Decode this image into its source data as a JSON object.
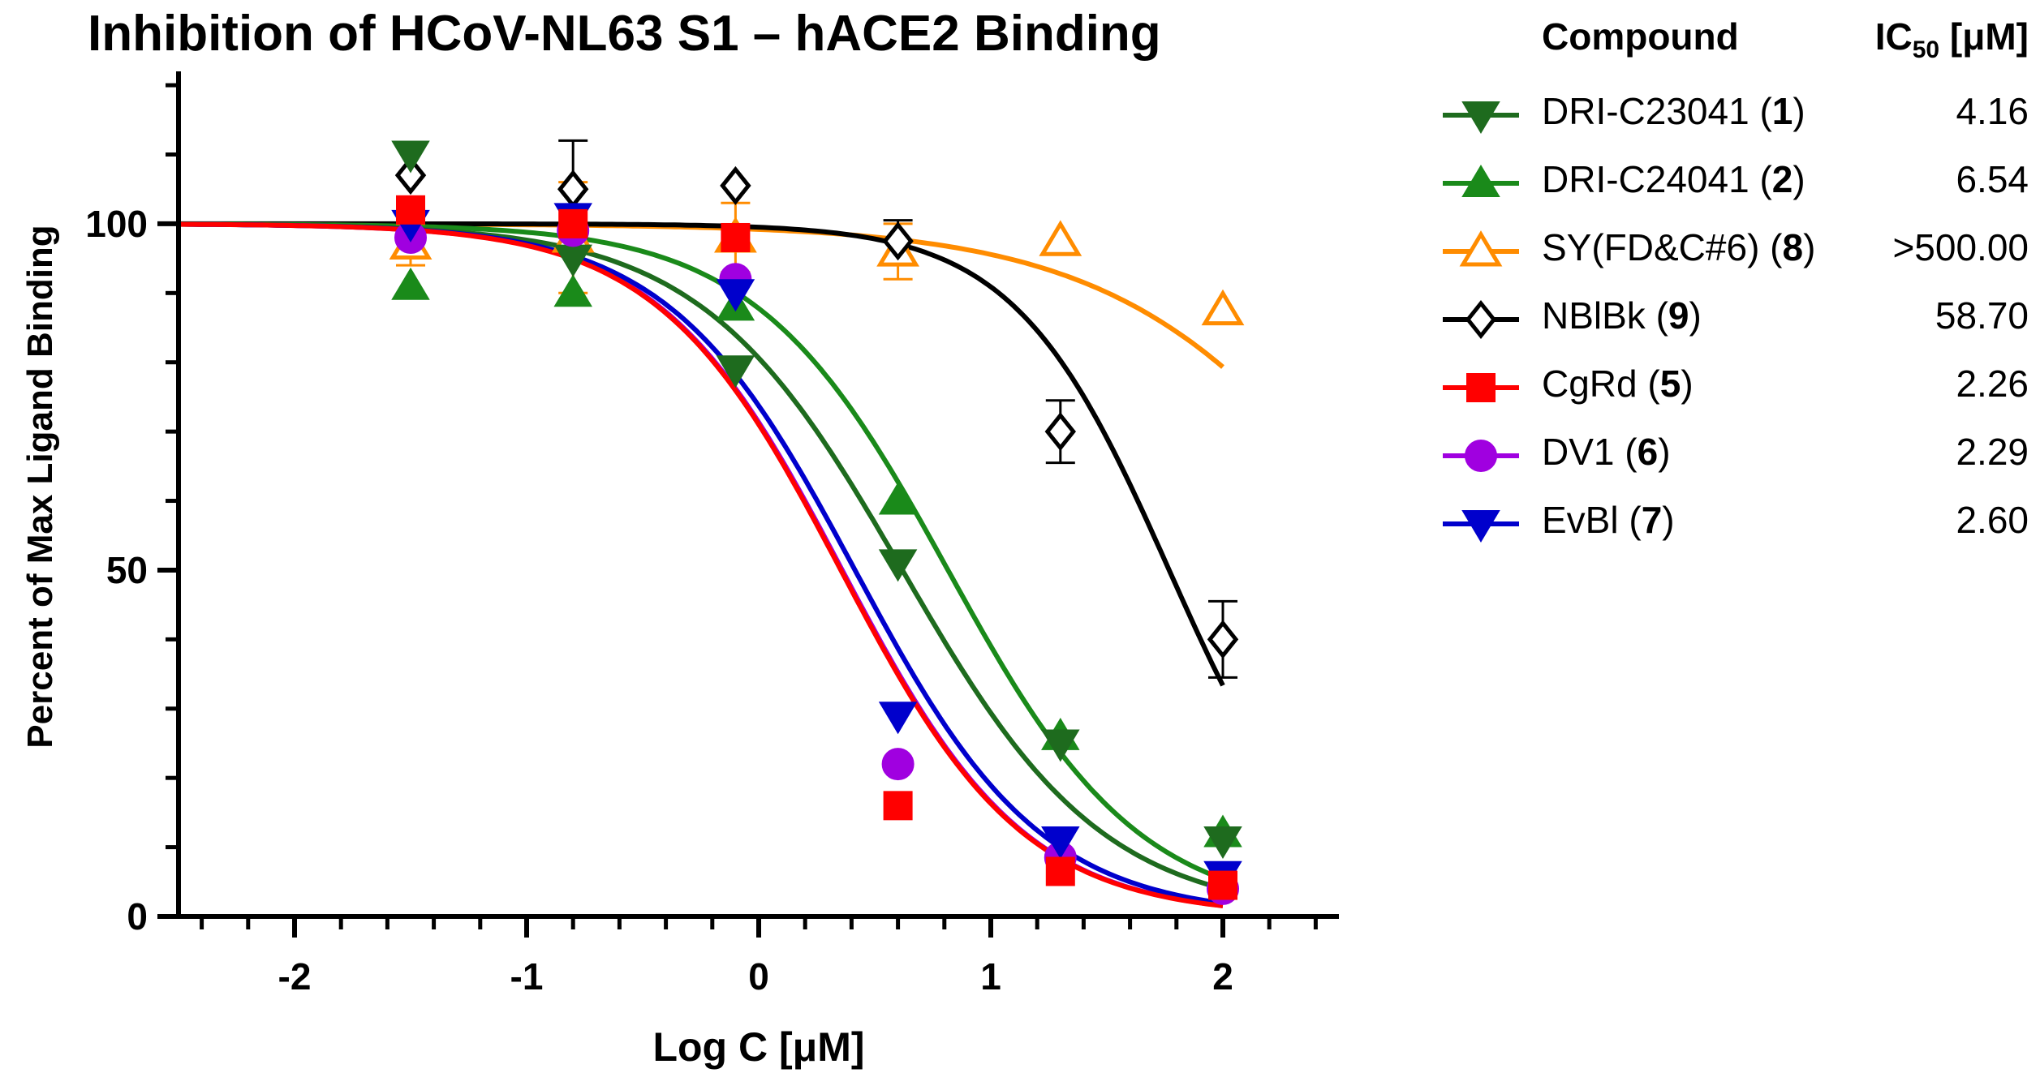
{
  "chart_data": {
    "type": "scatter",
    "title": "Inhibition of HCoV-NL63 S1 – hACE2 Binding",
    "xlabel": "Log C [μM]",
    "ylabel": "Percent of Max Ligand Binding",
    "xlim": [
      -2.5,
      2.5
    ],
    "ylim": [
      0,
      122
    ],
    "xticks": [
      -2,
      -1,
      0,
      1,
      2
    ],
    "yticks": [
      0,
      50,
      100
    ],
    "x_tick_labels": [
      "-2",
      "-1",
      "0",
      "1",
      "2"
    ],
    "y_tick_labels": [
      "0",
      "50",
      "100"
    ],
    "fit": "four-parameter logistic (top 100, bottom 0)",
    "legend_position": "right",
    "legend_header": {
      "compound": "Compound",
      "ic50": "IC",
      "ic50_sub": "50",
      "ic50_unit": " [μM]"
    },
    "series": [
      {
        "name": "DRI-C23041",
        "num": "1",
        "ic50_label": "4.16",
        "ic50": 4.16,
        "hill": 1.0,
        "marker": "triangle-down",
        "filled": true,
        "color": "#1e6b1e",
        "x": [
          -1.5,
          -0.8,
          -0.1,
          0.6,
          1.3,
          2.0
        ],
        "y": [
          110,
          95,
          79,
          51,
          25,
          11
        ]
      },
      {
        "name": "DRI-C24041",
        "num": "2",
        "ic50_label": "6.54",
        "ic50": 6.54,
        "hill": 1.05,
        "marker": "triangle-up",
        "filled": true,
        "color": "#1a8a1a",
        "x": [
          -1.5,
          -0.8,
          -0.1,
          0.6,
          1.3,
          2.0
        ],
        "y": [
          91,
          90,
          88,
          60,
          26,
          12
        ]
      },
      {
        "name": "SY(FD&C#6)",
        "num": "8",
        "ic50_label": ">500.00",
        "ic50": 600,
        "hill": 0.75,
        "marker": "triangle-up",
        "filled": false,
        "color": "#ff8c00",
        "x": [
          -1.5,
          -0.8,
          -0.1,
          0.6,
          1.3,
          2.0
        ],
        "y": [
          97,
          98,
          98,
          96,
          97.5,
          87.5
        ],
        "err": [
          3,
          8,
          5,
          4,
          0,
          0
        ]
      },
      {
        "name": "NBlBk",
        "num": "9",
        "ic50_label": "58.70",
        "ic50": 58.7,
        "hill": 1.3,
        "marker": "diamond",
        "filled": false,
        "color": "#000000",
        "x": [
          -1.5,
          -0.8,
          -0.1,
          0.6,
          1.3,
          2.0
        ],
        "y": [
          107,
          105,
          105.5,
          97.5,
          70,
          40
        ],
        "err": [
          0,
          7,
          0,
          3,
          4.5,
          5.5
        ]
      },
      {
        "name": "CgRd",
        "num": "5",
        "ic50_label": "2.26",
        "ic50": 2.26,
        "hill": 1.1,
        "marker": "square",
        "filled": true,
        "color": "#ff0000",
        "x": [
          -1.5,
          -0.8,
          -0.1,
          0.6,
          1.3,
          2.0
        ],
        "y": [
          102,
          100,
          98,
          16,
          6.5,
          4.5
        ]
      },
      {
        "name": "DV1",
        "num": "6",
        "ic50_label": "2.29",
        "ic50": 2.29,
        "hill": 1.1,
        "marker": "circle",
        "filled": true,
        "color": "#a000e0",
        "x": [
          -1.5,
          -0.8,
          -0.1,
          0.6,
          1.3,
          2.0
        ],
        "y": [
          98,
          99,
          92,
          22,
          8.5,
          4
        ]
      },
      {
        "name": "EvBl",
        "num": "7",
        "ic50_label": "2.60",
        "ic50": 2.6,
        "hill": 1.08,
        "marker": "triangle-down",
        "filled": true,
        "color": "#0000cc",
        "x": [
          -1.5,
          -0.8,
          -0.1,
          0.6,
          1.3,
          2.0
        ],
        "y": [
          100,
          101,
          90,
          29,
          11,
          6
        ]
      }
    ]
  }
}
